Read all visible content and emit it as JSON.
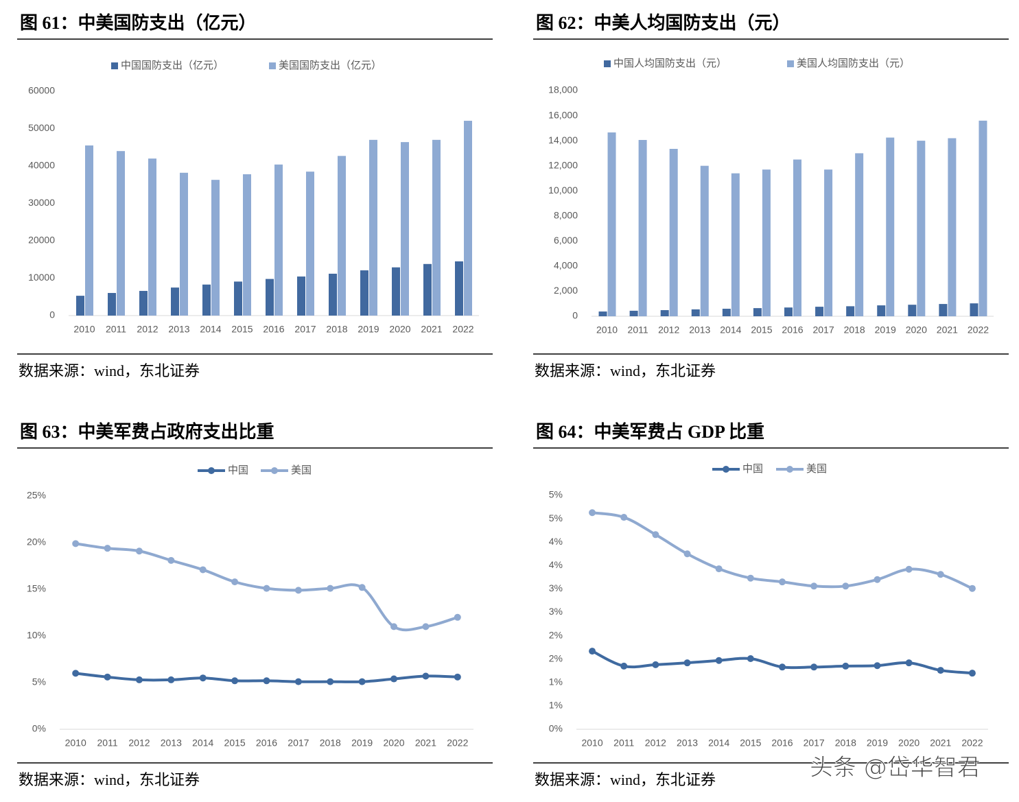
{
  "chart_data": [
    {
      "type": "bar",
      "title": "图 61：中美国防支出（亿元）",
      "source": "数据来源：wind，东北证券",
      "categories": [
        "2010",
        "2011",
        "2012",
        "2013",
        "2014",
        "2015",
        "2016",
        "2017",
        "2018",
        "2019",
        "2020",
        "2021",
        "2022"
      ],
      "series": [
        {
          "name": "中国国防支出（亿元）",
          "color": "#41699f",
          "values": [
            5300,
            6050,
            6600,
            7500,
            8300,
            9100,
            9800,
            10450,
            11200,
            12100,
            12900,
            13800,
            14500
          ]
        },
        {
          "name": "美国国防支出（亿元）",
          "color": "#8eaad3",
          "values": [
            45500,
            44000,
            42000,
            38200,
            36300,
            37800,
            40400,
            38500,
            42700,
            47000,
            46400,
            47000,
            52100
          ]
        }
      ],
      "ylim": [
        0,
        60000
      ],
      "yticks": [
        0,
        10000,
        20000,
        30000,
        40000,
        50000,
        60000
      ]
    },
    {
      "type": "bar",
      "title": "图 62：中美人均国防支出（元）",
      "source": "数据来源：wind，东北证券",
      "categories": [
        "2010",
        "2011",
        "2012",
        "2013",
        "2014",
        "2015",
        "2016",
        "2017",
        "2018",
        "2019",
        "2020",
        "2021",
        "2022"
      ],
      "series": [
        {
          "name": "中国人均国防支出（元）",
          "color": "#41699f",
          "values": [
            380,
            440,
            490,
            550,
            600,
            650,
            700,
            760,
            800,
            870,
            920,
            980,
            1030
          ]
        },
        {
          "name": "美国人均国防支出（元）",
          "color": "#8eaad3",
          "values": [
            14660,
            14060,
            13350,
            12000,
            11400,
            11700,
            12500,
            11700,
            13000,
            14250,
            14000,
            14200,
            15600
          ]
        }
      ],
      "ylim": [
        0,
        18000
      ],
      "yticks": [
        0,
        {
          "value": 2000,
          "label": "2,000"
        },
        {
          "value": 4000,
          "label": "4,000"
        },
        {
          "value": 6000,
          "label": "6,000"
        },
        {
          "value": 8000,
          "label": "8,000"
        },
        {
          "value": 10000,
          "label": "10,000"
        },
        {
          "value": 12000,
          "label": "12,000"
        },
        {
          "value": 14000,
          "label": "14,000"
        },
        {
          "value": 16000,
          "label": "16,000"
        },
        {
          "value": 18000,
          "label": "18,000"
        }
      ]
    },
    {
      "type": "line",
      "title": "图 63：中美军费占政府支出比重",
      "source": "数据来源：wind，东北证券",
      "categories": [
        "2010",
        "2011",
        "2012",
        "2013",
        "2014",
        "2015",
        "2016",
        "2017",
        "2018",
        "2019",
        "2020",
        "2021",
        "2022"
      ],
      "series": [
        {
          "name": "中国",
          "color": "#3f6aa0",
          "values": [
            6.0,
            5.6,
            5.3,
            5.3,
            5.5,
            5.2,
            5.2,
            5.1,
            5.1,
            5.1,
            5.4,
            5.7,
            5.6
          ]
        },
        {
          "name": "美国",
          "color": "#8fa9d0",
          "values": [
            19.9,
            19.4,
            19.1,
            18.1,
            17.1,
            15.8,
            15.1,
            14.9,
            15.1,
            15.2,
            11.0,
            11.0,
            12.0
          ]
        }
      ],
      "ylim": [
        0,
        25
      ],
      "yticks": [
        {
          "value": 0,
          "label": "0%"
        },
        {
          "value": 5,
          "label": "5%"
        },
        {
          "value": 10,
          "label": "10%"
        },
        {
          "value": 15,
          "label": "15%"
        },
        {
          "value": 20,
          "label": "20%"
        },
        {
          "value": 25,
          "label": "25%"
        }
      ]
    },
    {
      "type": "line",
      "title": "图 64：中美军费占 GDP 比重",
      "source": "数据来源：wind，东北证券",
      "categories": [
        "2010",
        "2011",
        "2012",
        "2013",
        "2014",
        "2015",
        "2016",
        "2017",
        "2018",
        "2019",
        "2020",
        "2021",
        "2022"
      ],
      "series": [
        {
          "name": "中国",
          "color": "#3f6aa0",
          "values": [
            1.67,
            1.35,
            1.38,
            1.42,
            1.47,
            1.51,
            1.33,
            1.33,
            1.35,
            1.36,
            1.42,
            1.26,
            1.2
          ]
        },
        {
          "name": "美国",
          "color": "#8fa9d0",
          "values": [
            4.63,
            4.53,
            4.16,
            3.75,
            3.43,
            3.23,
            3.15,
            3.06,
            3.06,
            3.2,
            3.42,
            3.31,
            3.01
          ]
        }
      ],
      "ylim": [
        0,
        5
      ],
      "yticks": [
        {
          "value": 0,
          "label": "0%"
        },
        {
          "value": 0.5,
          "label": "1%"
        },
        {
          "value": 1,
          "label": "1%"
        },
        {
          "value": 1.5,
          "label": "2%"
        },
        {
          "value": 2,
          "label": "2%"
        },
        {
          "value": 2.5,
          "label": "3%"
        },
        {
          "value": 3,
          "label": "3%"
        },
        {
          "value": 3.5,
          "label": "4%"
        },
        {
          "value": 4,
          "label": "4%"
        },
        {
          "value": 4.5,
          "label": "5%"
        },
        {
          "value": 5,
          "label": "5%"
        }
      ]
    }
  ],
  "watermark": "头条 @岱华智君"
}
